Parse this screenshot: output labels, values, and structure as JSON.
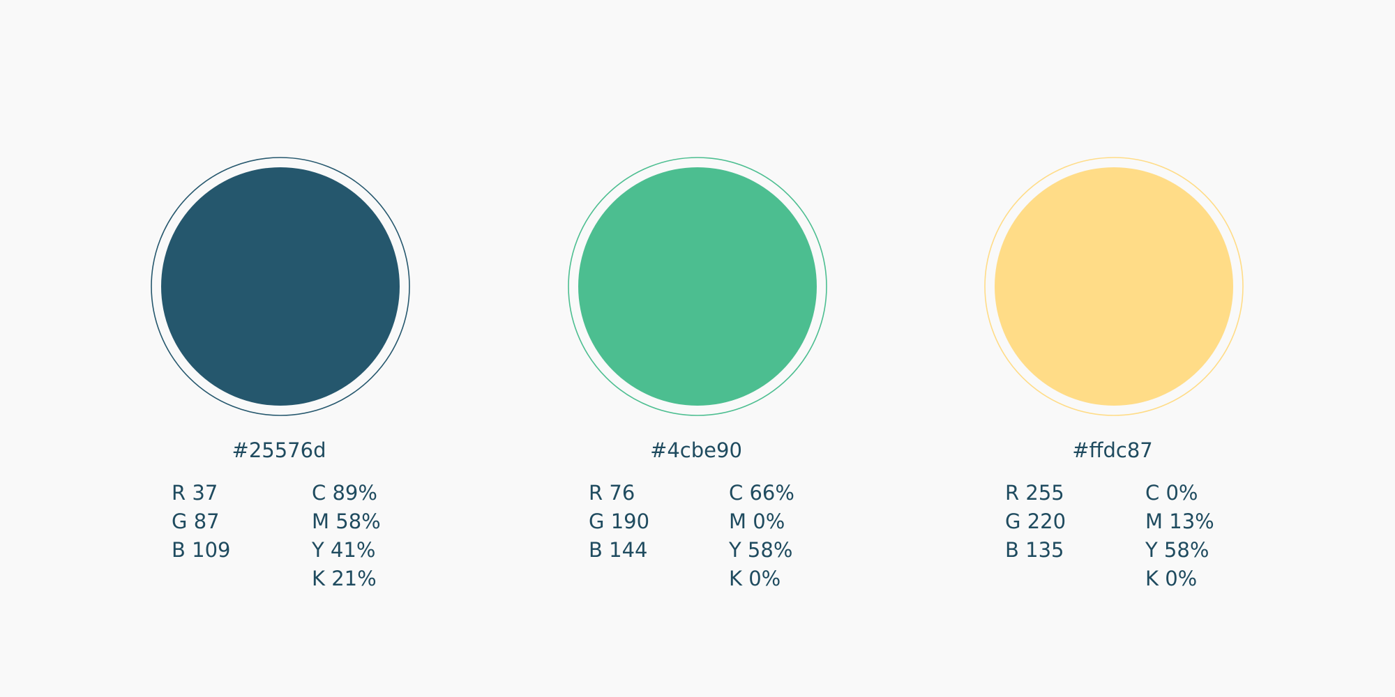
{
  "swatches": [
    {
      "hex": "#25576d",
      "rgb": [
        "R 37",
        "G 87",
        "B 109"
      ],
      "cmyk": [
        "C 89%",
        "M 58%",
        "Y 41%",
        "K 21%"
      ]
    },
    {
      "hex": "#4cbe90",
      "rgb": [
        "R 76",
        "G 190",
        "B 144"
      ],
      "cmyk": [
        "C 66%",
        "M 0%",
        "Y 58%",
        "K 0%"
      ]
    },
    {
      "hex": "#ffdc87",
      "rgb": [
        "R 255",
        "G 220",
        "B 135"
      ],
      "cmyk": [
        "C 0%",
        "M 13%",
        "Y 58%",
        "K 0%"
      ]
    }
  ]
}
